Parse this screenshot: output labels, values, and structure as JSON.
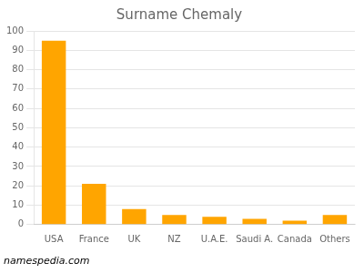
{
  "chart_data": {
    "type": "bar",
    "title": "Surname Chemaly",
    "categories": [
      "USA",
      "France",
      "UK",
      "NZ",
      "U.A.E.",
      "Saudi A.",
      "Canada",
      "Others"
    ],
    "values": [
      95,
      21,
      8,
      5,
      4,
      3,
      2,
      5
    ],
    "color": "#FFA500",
    "ylim": [
      0,
      100
    ],
    "yticks": [
      0,
      10,
      20,
      30,
      40,
      50,
      60,
      70,
      80,
      90,
      100
    ],
    "grid": true,
    "annotations": [
      "namespedia.com"
    ]
  }
}
